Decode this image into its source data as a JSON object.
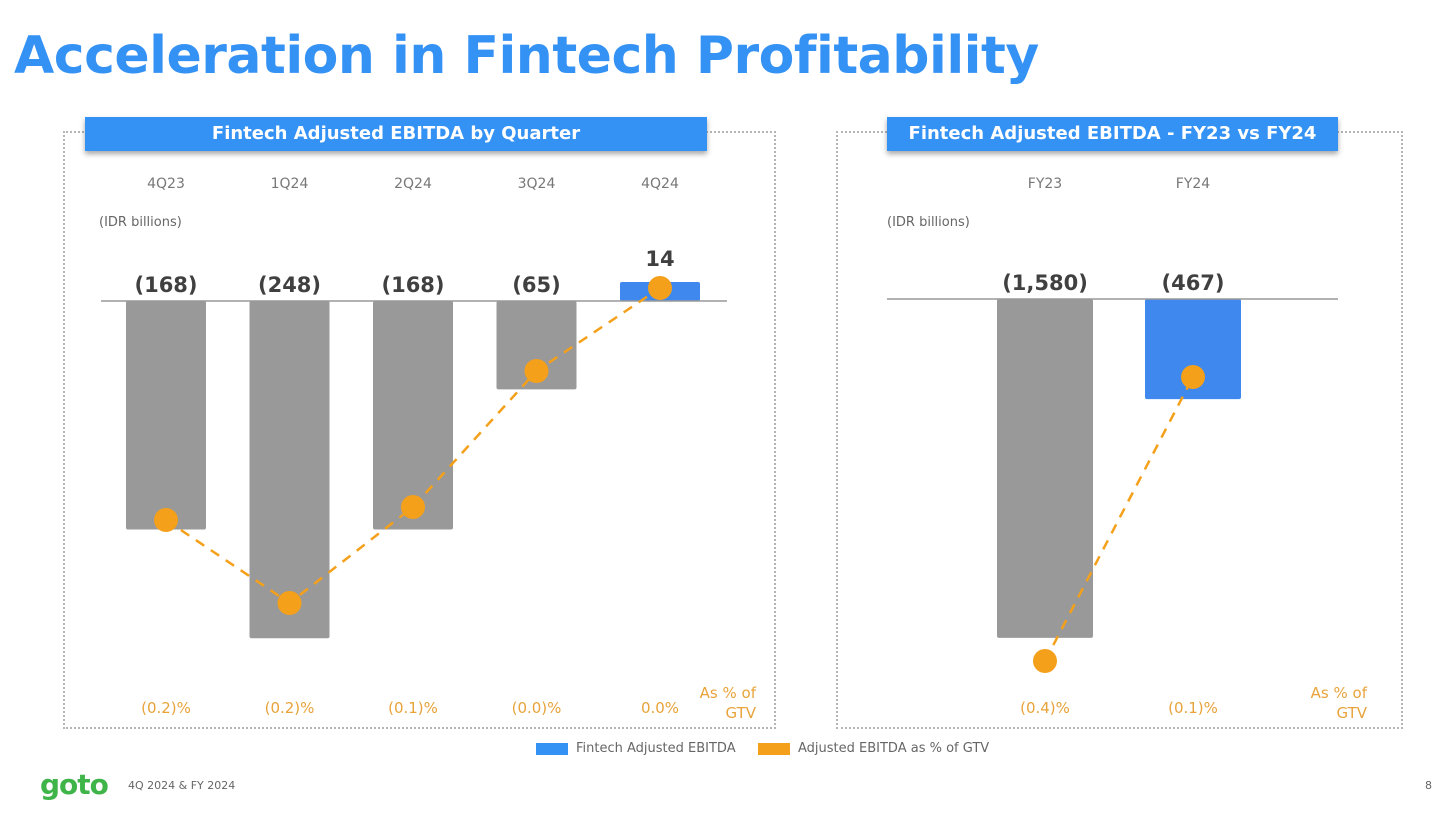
{
  "page": {
    "title": "Acceleration in Fintech Profitability",
    "footer_text": "4Q 2024 & FY 2024",
    "page_number": "8",
    "logo_text": "goto"
  },
  "colors": {
    "title": "#3592f5",
    "header_bg": "#3592f5",
    "bar_negative": "#999999",
    "bar_current": "#3f88ee",
    "line_marker": "#f5a01a",
    "pct_label": "#e8a33a",
    "logo": "#3fb549"
  },
  "legend": {
    "items": [
      {
        "label": "Fintech Adjusted EBITDA",
        "color": "#3592f5"
      },
      {
        "label": "Adjusted EBITDA as % of GTV",
        "color": "#f5a01a"
      }
    ]
  },
  "chart_data": [
    {
      "type": "bar",
      "title": "Fintech Adjusted EBITDA by Quarter",
      "unit_label": "(IDR billions)",
      "categories": [
        "4Q23",
        "1Q24",
        "2Q24",
        "3Q24",
        "4Q24"
      ],
      "values": [
        -168,
        -248,
        -168,
        -65,
        14
      ],
      "value_labels": [
        "(168)",
        "(248)",
        "(168)",
        "(65)",
        "14"
      ],
      "bar_colors": [
        "#999999",
        "#999999",
        "#999999",
        "#999999",
        "#3f88ee"
      ],
      "line_series": {
        "type": "line",
        "values": [
          -0.2,
          -0.2,
          -0.1,
          -0.0,
          0.0
        ],
        "labels": [
          "(0.2)%",
          "(0.2)%",
          "(0.1)%",
          "(0.0)%",
          "0.0%"
        ],
        "axis_caption": "As % of GTV"
      }
    },
    {
      "type": "bar",
      "title": "Fintech Adjusted EBITDA - FY23 vs FY24",
      "unit_label": "(IDR billions)",
      "categories": [
        "FY23",
        "FY24"
      ],
      "values": [
        -1580,
        -467
      ],
      "value_labels": [
        "(1,580)",
        "(467)"
      ],
      "bar_colors": [
        "#999999",
        "#3f88ee"
      ],
      "line_series": {
        "type": "line",
        "values": [
          -0.4,
          -0.1
        ],
        "labels": [
          "(0.4)%",
          "(0.1)%"
        ],
        "axis_caption": "As % of GTV"
      }
    }
  ]
}
